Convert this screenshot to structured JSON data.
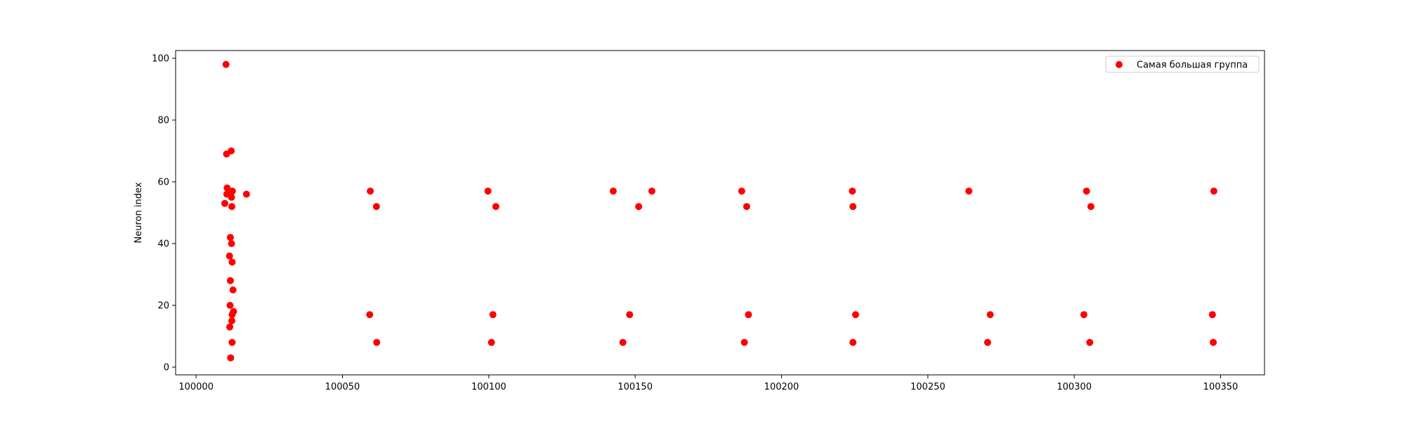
{
  "chart_data": {
    "type": "scatter",
    "title": "",
    "xlabel": "",
    "ylabel": "Neuron index",
    "xlim": [
      99993,
      100365
    ],
    "ylim": [
      -2.5,
      102.5
    ],
    "xticks": [
      100000,
      100050,
      100100,
      100150,
      100200,
      100250,
      100300,
      100350
    ],
    "yticks": [
      0,
      20,
      40,
      60,
      80,
      100
    ],
    "grid": false,
    "legend": {
      "location": "upper right"
    },
    "series": [
      {
        "name": "Самая большая группа",
        "color": "#ff0000",
        "marker": "circle",
        "points": [
          [
            100010.2,
            98
          ],
          [
            100012.0,
            70
          ],
          [
            100010.4,
            69
          ],
          [
            100010.6,
            58
          ],
          [
            100012.4,
            57
          ],
          [
            100010.5,
            56
          ],
          [
            100012.1,
            55
          ],
          [
            100009.8,
            53
          ],
          [
            100012.2,
            52
          ],
          [
            100017.2,
            56
          ],
          [
            100011.7,
            42
          ],
          [
            100012.1,
            40
          ],
          [
            100011.4,
            36
          ],
          [
            100012.3,
            34
          ],
          [
            100011.7,
            28
          ],
          [
            100012.6,
            25
          ],
          [
            100011.6,
            20
          ],
          [
            100012.8,
            18
          ],
          [
            100012.3,
            17
          ],
          [
            100012.2,
            15
          ],
          [
            100011.5,
            13
          ],
          [
            100012.3,
            8
          ],
          [
            100011.8,
            3
          ],
          [
            100059.5,
            57
          ],
          [
            100061.6,
            52
          ],
          [
            100059.3,
            17
          ],
          [
            100061.7,
            8
          ],
          [
            100099.7,
            57
          ],
          [
            100102.4,
            52
          ],
          [
            100101.4,
            17
          ],
          [
            100100.9,
            8
          ],
          [
            100142.5,
            57
          ],
          [
            100151.2,
            52
          ],
          [
            100148.1,
            17
          ],
          [
            100145.8,
            8
          ],
          [
            100155.7,
            57
          ],
          [
            100186.4,
            57
          ],
          [
            100188.1,
            52
          ],
          [
            100188.7,
            17
          ],
          [
            100187.3,
            8
          ],
          [
            100224.2,
            57
          ],
          [
            100224.4,
            52
          ],
          [
            100225.3,
            17
          ],
          [
            100224.4,
            8
          ],
          [
            100264.0,
            57
          ],
          [
            100271.3,
            17
          ],
          [
            100270.4,
            8
          ],
          [
            100304.2,
            57
          ],
          [
            100305.7,
            52
          ],
          [
            100303.3,
            17
          ],
          [
            100305.3,
            8
          ],
          [
            100347.7,
            57
          ],
          [
            100347.2,
            17
          ],
          [
            100347.5,
            8
          ]
        ]
      }
    ]
  }
}
